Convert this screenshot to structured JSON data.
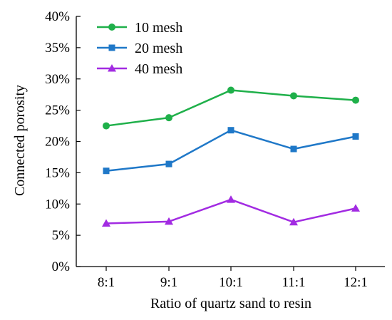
{
  "chart_data": {
    "type": "line",
    "xlabel": "Ratio of quartz sand to resin",
    "ylabel": "Connected porosity",
    "categories": [
      "8:1",
      "9:1",
      "10:1",
      "11:1",
      "12:1"
    ],
    "ylim": [
      0,
      40
    ],
    "yticks": [
      0,
      5,
      10,
      15,
      20,
      25,
      30,
      35,
      40
    ],
    "ytick_labels": [
      "0%",
      "5%",
      "10%",
      "15%",
      "20%",
      "25%",
      "30%",
      "35%",
      "40%"
    ],
    "grid": false,
    "legend_position": "top-left",
    "series": [
      {
        "name": "10 mesh",
        "color": "#1fb04a",
        "marker": "circle",
        "values": [
          22.5,
          23.8,
          28.2,
          27.3,
          26.6
        ]
      },
      {
        "name": "20 mesh",
        "color": "#1f78c8",
        "marker": "square",
        "values": [
          15.3,
          16.4,
          21.8,
          18.8,
          20.8
        ]
      },
      {
        "name": "40 mesh",
        "color": "#a22be2",
        "marker": "triangle",
        "values": [
          6.9,
          7.2,
          10.7,
          7.1,
          9.3
        ]
      }
    ]
  }
}
